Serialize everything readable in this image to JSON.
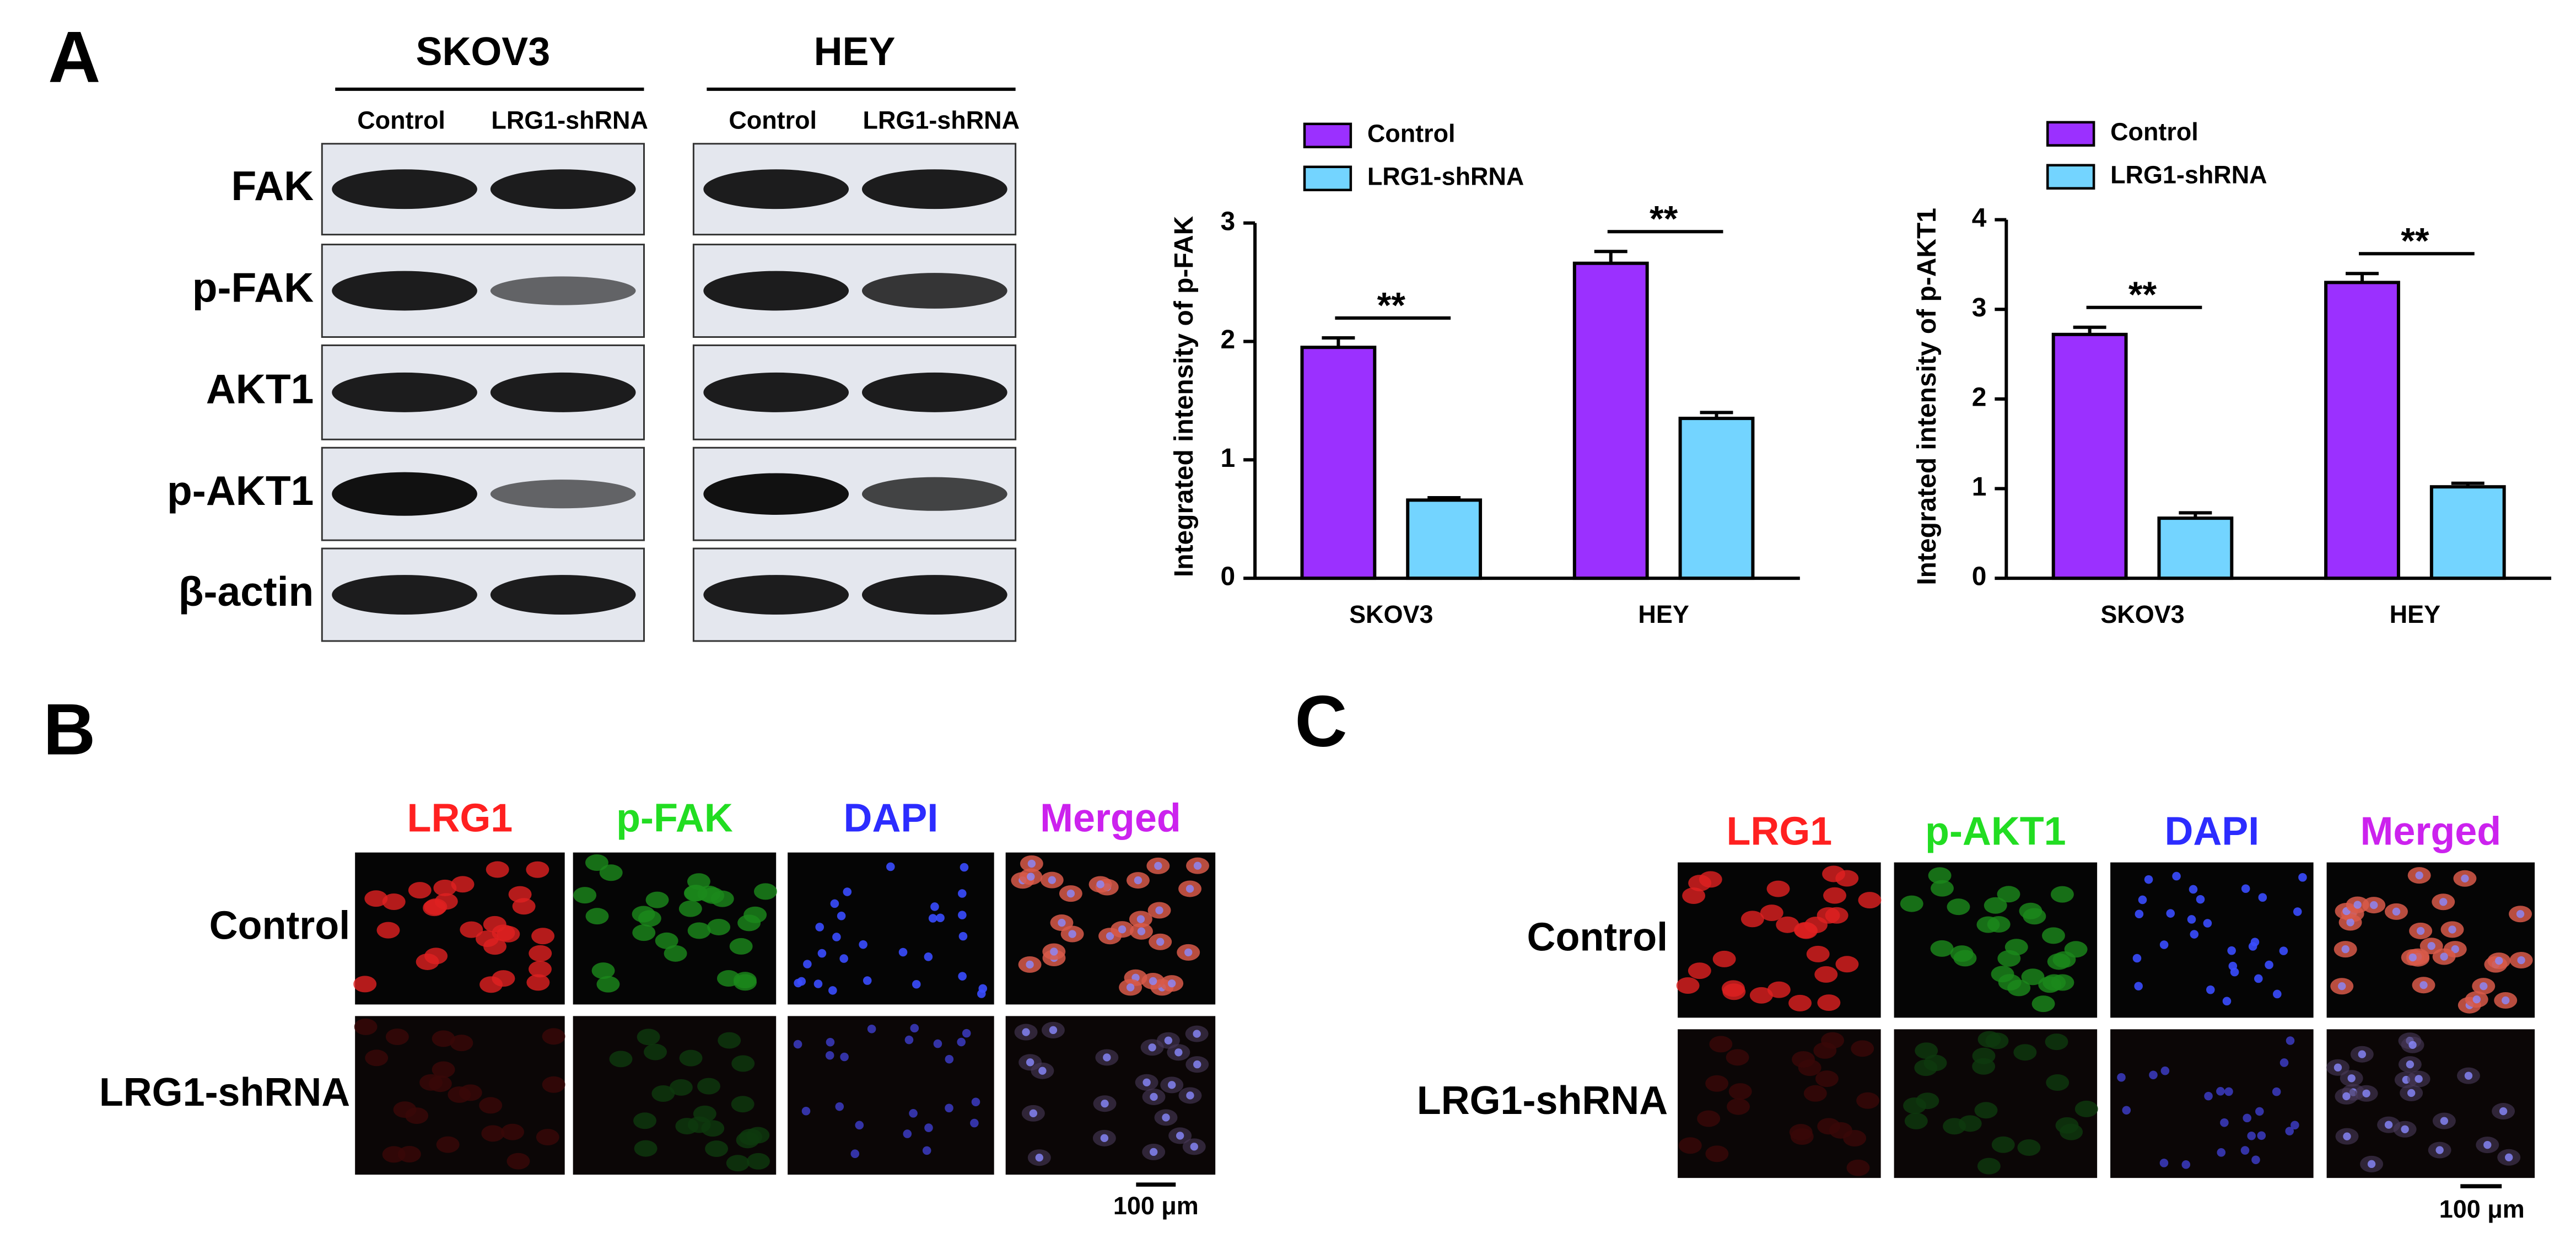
{
  "panel_labels": [
    "A",
    "B",
    "C"
  ],
  "western_blot": {
    "cell_lines": [
      "SKOV3",
      "HEY"
    ],
    "conditions": [
      [
        "Control",
        "LRG1-shRNA"
      ],
      [
        "Control",
        "LRG1-shRNA"
      ]
    ],
    "proteins": [
      "FAK",
      "p-FAK",
      "AKT1",
      "p-AKT1",
      "β-actin"
    ]
  },
  "chart_data": [
    {
      "type": "bar",
      "y_label": "Integrated intensity of p-FAK",
      "categories": [
        "SKOV3",
        "HEY"
      ],
      "series": [
        {
          "name": "Control",
          "color": "#9b30ff",
          "values": [
            1.95,
            2.66
          ],
          "errors": [
            0.08,
            0.1
          ]
        },
        {
          "name": "LRG1-shRNA",
          "color": "#73d4ff",
          "values": [
            0.66,
            1.35
          ],
          "errors": [
            0.02,
            0.05
          ]
        }
      ],
      "annotations": [
        "**",
        "**"
      ],
      "ylim": [
        0,
        3
      ],
      "yticks": [
        0,
        1,
        2,
        3
      ]
    },
    {
      "type": "bar",
      "y_label": "Integrated intensity of p-AKT1",
      "categories": [
        "SKOV3",
        "HEY"
      ],
      "series": [
        {
          "name": "Control",
          "color": "#9b30ff",
          "values": [
            2.72,
            3.3
          ],
          "errors": [
            0.08,
            0.1
          ]
        },
        {
          "name": "LRG1-shRNA",
          "color": "#73d4ff",
          "values": [
            0.67,
            1.02
          ],
          "errors": [
            0.06,
            0.04
          ]
        }
      ],
      "annotations": [
        "**",
        "**"
      ],
      "ylim": [
        0,
        4
      ],
      "yticks": [
        0,
        1,
        2,
        3,
        4
      ]
    }
  ],
  "if_panels": [
    {
      "channels": [
        "LRG1",
        "p-FAK",
        "DAPI",
        "Merged"
      ],
      "rows": [
        "Control",
        "LRG1-shRNA"
      ],
      "scale_bar": "100 μm"
    },
    {
      "channels": [
        "LRG1",
        "p-AKT1",
        "DAPI",
        "Merged"
      ],
      "rows": [
        "Control",
        "LRG1-shRNA"
      ],
      "scale_bar": "100 μm"
    }
  ]
}
